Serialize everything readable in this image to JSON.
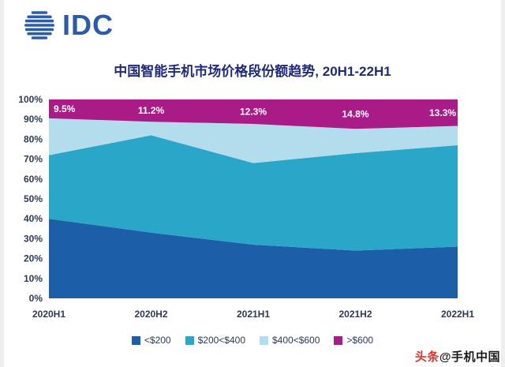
{
  "logo": {
    "text": "IDC"
  },
  "title": "中国智能手机市场价格段份额趋势, 20H1-22H1",
  "watermark": {
    "source": "头条",
    "account": "@手机中国"
  },
  "chart_data": {
    "type": "area",
    "stacked": true,
    "units": "percent",
    "title": "中国智能手机市场价格段份额趋势, 20H1-22H1",
    "categories": [
      "2020H1",
      "2020H2",
      "2021H1",
      "2021H2",
      "2022H1"
    ],
    "series": [
      {
        "name": "<$200",
        "color": "#1d5fa7",
        "values": [
          40,
          33,
          27,
          24,
          26
        ]
      },
      {
        "name": "$200<$400",
        "color": "#2aa6c9",
        "values": [
          32,
          49,
          41,
          49,
          51
        ]
      },
      {
        "name": "$400<$600",
        "color": "#b3dcec",
        "values": [
          18.5,
          6.8,
          19.7,
          12.2,
          9.7
        ]
      },
      {
        "name": ">$600",
        "color": "#a91c87",
        "values": [
          9.5,
          11.2,
          12.3,
          14.8,
          13.3
        ]
      }
    ],
    "data_labels": {
      "series": ">$600",
      "values": [
        "9.5%",
        "11.2%",
        "12.3%",
        "14.8%",
        "13.3%"
      ]
    },
    "y_ticks": [
      "100%",
      "90%",
      "80%",
      "70%",
      "60%",
      "50%",
      "40%",
      "30%",
      "20%",
      "10%",
      "0%"
    ],
    "ylim": [
      0,
      100
    ],
    "legend_position": "bottom",
    "grid": false
  }
}
